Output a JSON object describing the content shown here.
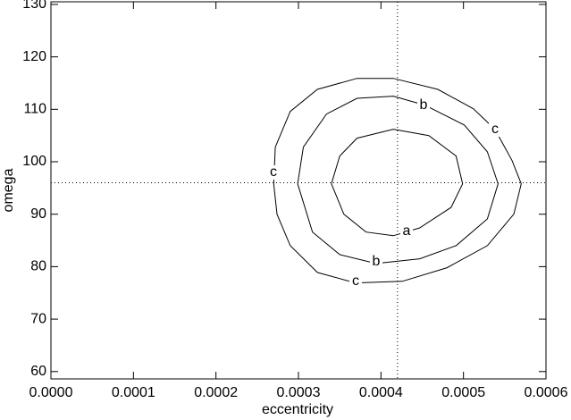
{
  "chart_data": {
    "type": "contour",
    "x_label": "eccentricity",
    "y_label": "omega",
    "xlim": [
      0,
      0.0006
    ],
    "ylim": [
      58.6,
      130.5
    ],
    "xticks": [
      {
        "value": 0,
        "label": "0.0000"
      },
      {
        "value": 0.0001,
        "label": "0.0001"
      },
      {
        "value": 0.0002,
        "label": "0.0002"
      },
      {
        "value": 0.0003,
        "label": "0.0003"
      },
      {
        "value": 0.0004,
        "label": "0.0004"
      },
      {
        "value": 0.0005,
        "label": "0.0005"
      },
      {
        "value": 0.0006,
        "label": "0.0006"
      }
    ],
    "yticks": [
      60,
      70,
      80,
      90,
      100,
      110,
      120,
      130
    ],
    "reference_lines": {
      "x": 0.00042,
      "y": 96
    },
    "series": [
      {
        "name": "a",
        "color": "#000000",
        "x": [
          0.00034,
          0.00035,
          0.000371,
          0.000415,
          0.000458,
          0.000491,
          0.000499,
          0.000485,
          0.000447,
          0.000415,
          0.000382,
          0.000355,
          0.00034
        ],
        "values": [
          95.8,
          101.1,
          104.5,
          106.2,
          105.0,
          101.1,
          95.8,
          91.3,
          87.4,
          85.9,
          86.6,
          90.0,
          95.8
        ]
      },
      {
        "name": "b",
        "color": "#000000",
        "x": [
          0.000299,
          0.000306,
          0.000334,
          0.000371,
          0.000415,
          0.000453,
          0.000501,
          0.000529,
          0.000542,
          0.000529,
          0.000491,
          0.000447,
          0.000394,
          0.00035,
          0.000317,
          0.000299
        ],
        "values": [
          95.8,
          102.8,
          109.1,
          112.1,
          112.5,
          110.8,
          107.0,
          101.9,
          95.8,
          89.1,
          84.0,
          81.5,
          80.6,
          82.3,
          86.6,
          95.8
        ]
      },
      {
        "name": "c",
        "color": "#000000",
        "x": [
          0.00027,
          0.000272,
          0.00029,
          0.000323,
          0.000371,
          0.000415,
          0.000469,
          0.000512,
          0.000538,
          0.000559,
          0.00057,
          0.000561,
          0.000529,
          0.00048,
          0.000426,
          0.000369,
          0.000323,
          0.00029,
          0.000274,
          0.00027
        ],
        "values": [
          95.8,
          102.8,
          109.6,
          113.8,
          115.9,
          115.9,
          113.8,
          110.1,
          106.2,
          100.2,
          95.8,
          90.0,
          84.0,
          79.8,
          77.2,
          76.9,
          78.9,
          84.0,
          90.0,
          95.8
        ]
      }
    ]
  }
}
